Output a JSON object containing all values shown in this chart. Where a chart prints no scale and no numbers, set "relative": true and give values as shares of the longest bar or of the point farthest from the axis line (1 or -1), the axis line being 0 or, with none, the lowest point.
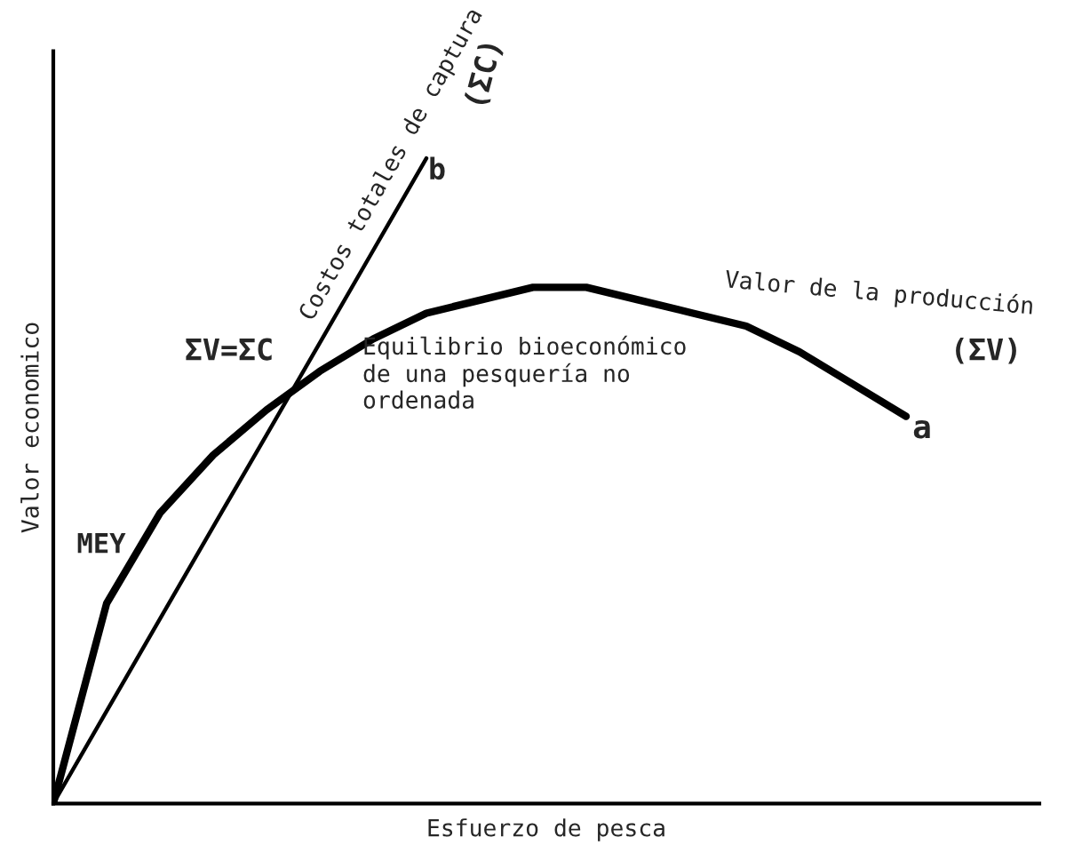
{
  "chart_data": {
    "type": "line",
    "relative": true,
    "xlabel": "Esfuerzo de pesca",
    "ylabel": "Valor economico",
    "categories": [
      null,
      null,
      null,
      null,
      null,
      null,
      null,
      null,
      null,
      null,
      null,
      null,
      null,
      null,
      null,
      null,
      null
    ],
    "series": [
      {
        "name": "Valor de la producción",
        "color": "#000000",
        "values": [
          0,
          0.31,
          0.45,
          0.54,
          0.61,
          0.67,
          0.72,
          0.76,
          0.78,
          0.8,
          0.8,
          0.78,
          0.76,
          0.74,
          0.7,
          0.65,
          0.6
        ]
      },
      {
        "name": "Costos totales de captura",
        "color": "#000000",
        "values": [
          0,
          0.143,
          0.286,
          0.429,
          0.571,
          0.714,
          0.857,
          1.0,
          null,
          null,
          null,
          null,
          null,
          null,
          null,
          null,
          null
        ]
      }
    ],
    "annotations": [
      "ΣV=ΣC",
      "MEY",
      "Equilibrio bioeconómico\nde una pesquería no\nordenada",
      "(ΣV)",
      "a",
      "(ΣC)",
      "b"
    ],
    "legend": false,
    "marker": "none",
    "line_style": "solid"
  }
}
